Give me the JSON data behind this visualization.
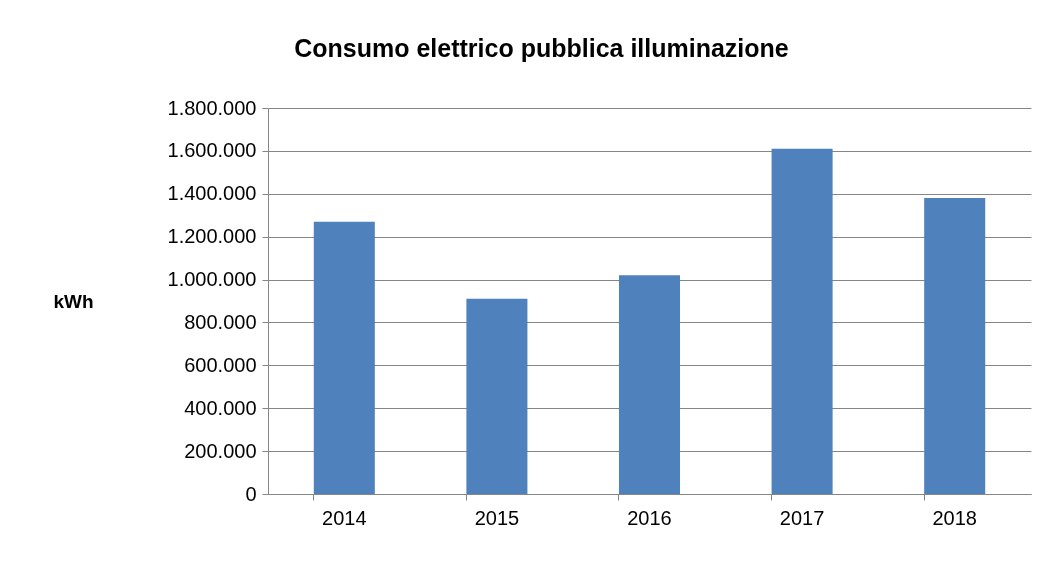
{
  "chart_data": {
    "type": "bar",
    "title": "Consumo elettrico pubblica illuminazione",
    "ylabel": "kWh",
    "categories": [
      "2014",
      "2015",
      "2016",
      "2017",
      "2018"
    ],
    "values": [
      1270000,
      910000,
      1020000,
      1610000,
      1380000
    ],
    "color": "#4f81bd",
    "ylim": [
      0,
      1800000
    ],
    "yticks": [
      0,
      {
        "value": 200000,
        "label": "200.000"
      },
      {
        "value": 400000,
        "label": "400.000"
      },
      {
        "value": 600000,
        "label": "600.000"
      },
      {
        "value": 800000,
        "label": "800.000"
      },
      {
        "value": 1000000,
        "label": "1.000.000"
      },
      {
        "value": 1200000,
        "label": "1.200.000"
      },
      {
        "value": 1400000,
        "label": "1.400.000"
      },
      {
        "value": 1600000,
        "label": "1.600.000"
      },
      {
        "value": 1800000,
        "label": "1.800.000"
      }
    ],
    "grid": true
  }
}
